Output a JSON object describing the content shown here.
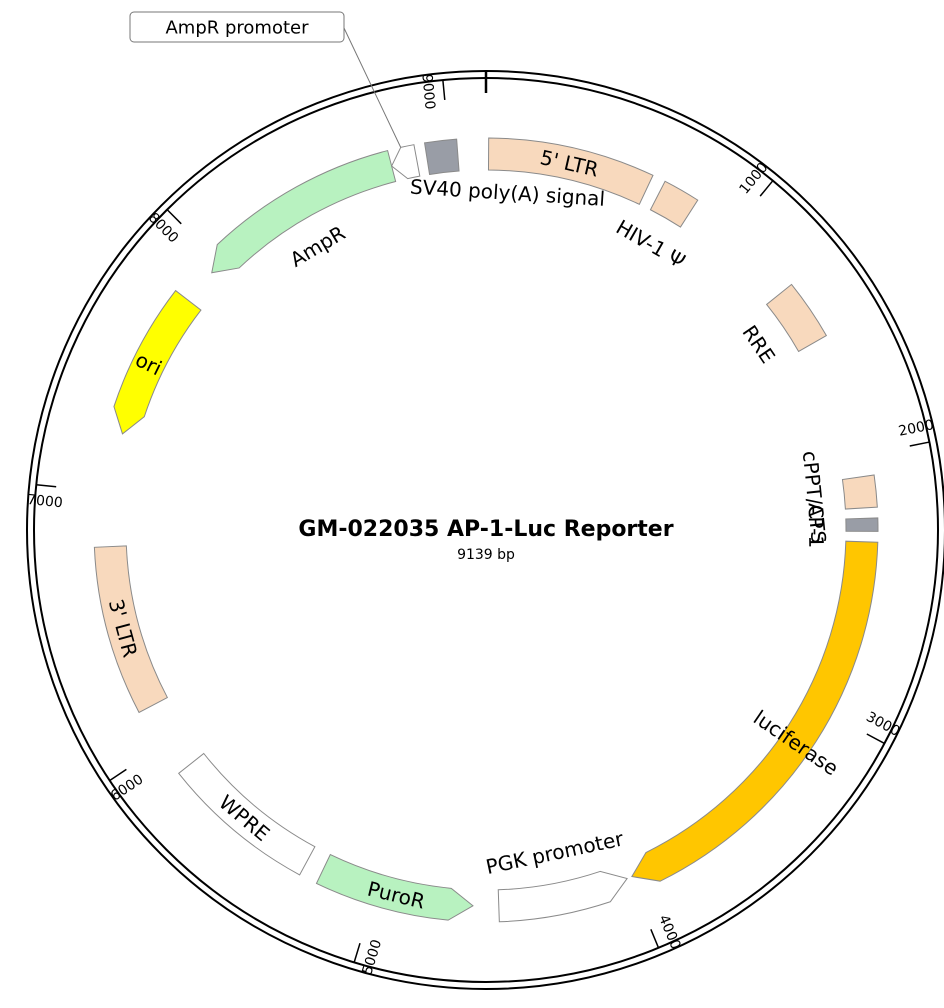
{
  "plasmid": {
    "name": "GM-022035 AP-1-Luc Reporter",
    "length_label": "9139 bp",
    "length_bp": 9139
  },
  "colors": {
    "ltr": "#f8d9bd",
    "marker": "#b8f2c0",
    "ori": "#ffff00",
    "luciferase": "#ffc600",
    "white": "#ffffff",
    "grey": "#999da6",
    "stroke": "#8a8a8a"
  },
  "ticks": [
    {
      "bp": 1000,
      "label": "1000"
    },
    {
      "bp": 2000,
      "label": "2000"
    },
    {
      "bp": 3000,
      "label": "3000"
    },
    {
      "bp": 4000,
      "label": "4000"
    },
    {
      "bp": 5000,
      "label": "5000"
    },
    {
      "bp": 6000,
      "label": "6000"
    },
    {
      "bp": 7000,
      "label": "7000"
    },
    {
      "bp": 8000,
      "label": "8000"
    },
    {
      "bp": 9000,
      "label": "9000"
    }
  ],
  "features": [
    {
      "id": "ltr5",
      "label": "5' LTR",
      "start": 10,
      "end": 640,
      "type": "box",
      "color": "ltr",
      "label_mode": "inside"
    },
    {
      "id": "psi",
      "label": "HIV-1 Ψ",
      "start": 690,
      "end": 830,
      "type": "box",
      "color": "ltr",
      "label_mode": "inner"
    },
    {
      "id": "rre",
      "label": "RRE",
      "start": 1300,
      "end": 1530,
      "type": "box",
      "color": "ltr",
      "label_mode": "inner"
    },
    {
      "id": "cppt",
      "label": "cPPT/CTS",
      "start": 2080,
      "end": 2200,
      "type": "box",
      "color": "ltr",
      "label_mode": "inner"
    },
    {
      "id": "ap1",
      "label": "AP-1",
      "start": 2240,
      "end": 2290,
      "type": "box",
      "color": "grey",
      "label_mode": "inner"
    },
    {
      "id": "luciferase",
      "label": "luciferase",
      "start": 2330,
      "end": 3990,
      "type": "arrow-cw",
      "color": "luciferase",
      "label_mode": "inside"
    },
    {
      "id": "pgk",
      "label": "PGK promoter",
      "start": 4010,
      "end": 4520,
      "type": "arrow-ccw",
      "color": "white",
      "label_mode": "inner"
    },
    {
      "id": "puror",
      "label": "PuroR",
      "start": 4620,
      "end": 5220,
      "type": "arrow-ccw",
      "color": "marker",
      "label_mode": "inside"
    },
    {
      "id": "wpre",
      "label": "WPRE",
      "start": 5290,
      "end": 5880,
      "type": "box",
      "color": "white",
      "label_mode": "inside"
    },
    {
      "id": "ltr3",
      "label": "3' LTR",
      "start": 6150,
      "end": 6790,
      "type": "box",
      "color": "ltr",
      "label_mode": "inside"
    },
    {
      "id": "ori",
      "label": "ori",
      "start": 7230,
      "end": 7810,
      "type": "arrow-ccw",
      "color": "ori",
      "label_mode": "inside"
    },
    {
      "id": "ampr",
      "label": "AmpR",
      "start": 7950,
      "end": 8770,
      "type": "arrow-ccw",
      "color": "marker",
      "label_mode": "inner"
    },
    {
      "id": "amppro",
      "label": "AmpR promoter",
      "start": 8770,
      "end": 8870,
      "type": "arrow-ccw",
      "color": "white",
      "label_mode": "callout"
    },
    {
      "id": "sv40",
      "label": "SV40 poly(A) signal",
      "start": 8910,
      "end": 9030,
      "type": "box",
      "color": "grey",
      "label_mode": "inner-long"
    }
  ]
}
